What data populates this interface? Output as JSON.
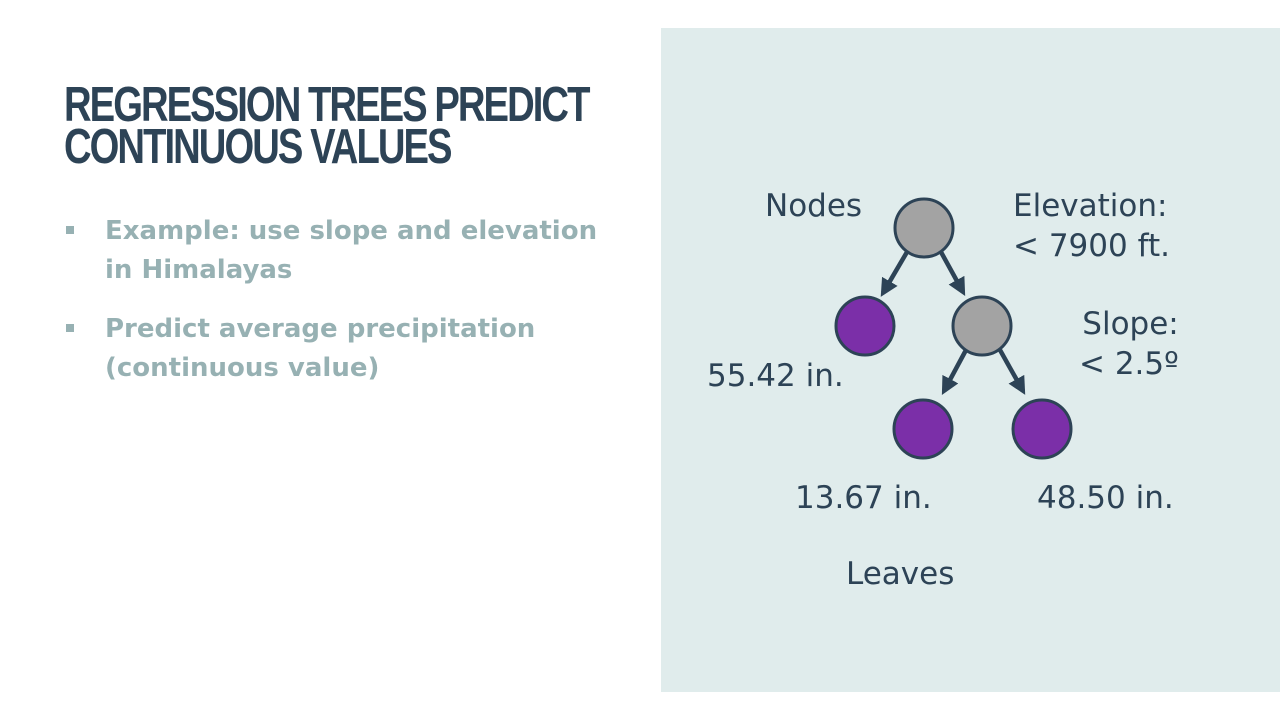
{
  "title": {
    "line1": "REGRESSION TREES PREDICT",
    "line2": "CONTINUOUS VALUES"
  },
  "bullets": [
    {
      "line1": "Example: use slope and elevation",
      "line2": "in Himalayas"
    },
    {
      "line1": "Predict average precipitation",
      "line2": "(continuous value)"
    }
  ],
  "diagram": {
    "nodes_label": "Nodes",
    "leaves_label": "Leaves",
    "root_split": {
      "line1": "Elevation:",
      "line2": "< 7900 ft."
    },
    "second_split": {
      "line1": "Slope:",
      "line2": "< 2.5º"
    },
    "leaf_values": {
      "left": "55.42 in.",
      "middle": "13.67 in.",
      "right": "48.50 in."
    },
    "colors": {
      "node_fill": "#a3a3a3",
      "leaf_fill": "#7b2fa8",
      "stroke": "#2d4356",
      "panel_bg": "#e0ecec"
    }
  }
}
